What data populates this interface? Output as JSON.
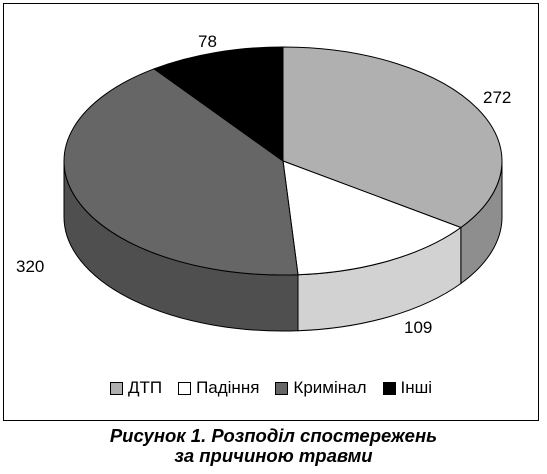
{
  "chart_data": {
    "type": "pie",
    "style": "3d",
    "categories": [
      "ДТП",
      "Падіння",
      "Кримінал",
      "Інші"
    ],
    "values": [
      272,
      109,
      320,
      78
    ],
    "colors": [
      "#b0b0b0",
      "#ffffff",
      "#666666",
      "#000000"
    ],
    "side_colors": [
      "#8e8e8e",
      "#d2d2d2",
      "#4f4f4f",
      "#000000"
    ],
    "legend_position": "bottom",
    "caption_line1": "Рисунок 1. Розподіл спостережень",
    "caption_line2": "за причиною травми"
  }
}
